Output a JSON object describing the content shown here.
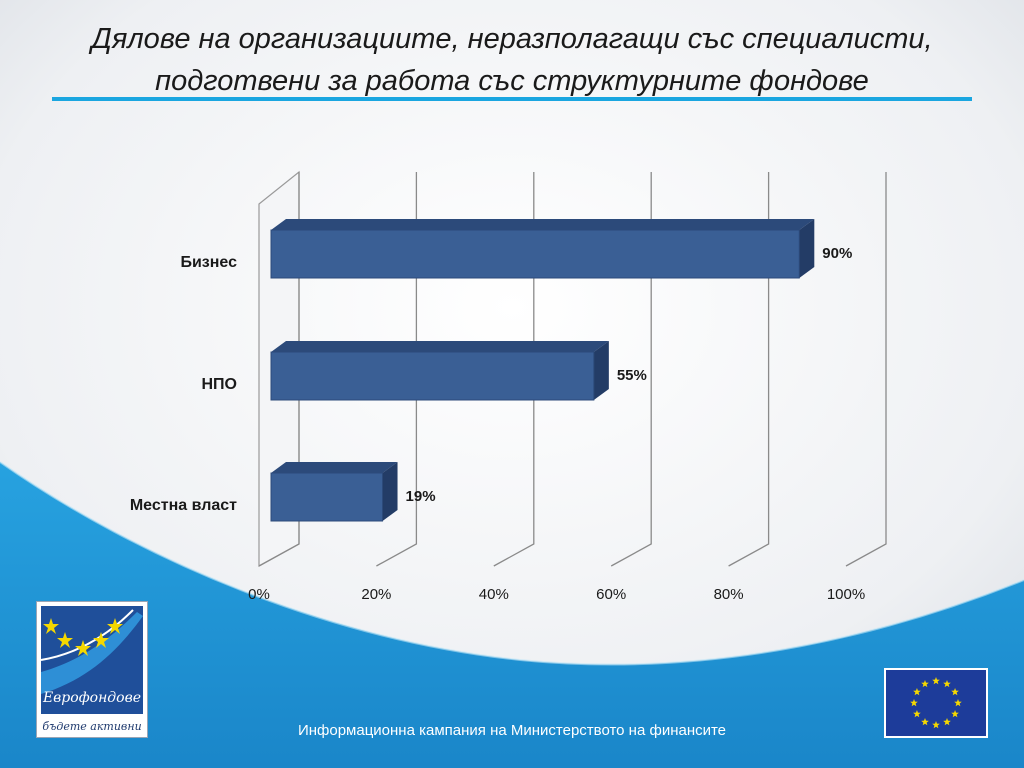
{
  "slide": {
    "title_lines": [
      "Дялове на организациите, неразполагащи със специалисти,",
      "подготвени за работа със структурните фондове"
    ],
    "footer": "Информационна кампания на Министерството на финансите",
    "logo": {
      "brand": "Еврофондове",
      "slogan": "бъдете активни",
      "icon": "eurofunds-logo"
    },
    "eu_flag": {
      "icon": "eu-flag-icon"
    },
    "colors": {
      "accent": "#1aa6e0",
      "bar": "#3a5f95",
      "background_band": "#1b8fd3"
    }
  },
  "chart_data": {
    "type": "bar",
    "orientation": "horizontal",
    "categories": [
      "Бизнес",
      "НПО",
      "Местна власт"
    ],
    "values": [
      90,
      55,
      19
    ],
    "value_labels": [
      "90%",
      "55%",
      "19%"
    ],
    "xlim": [
      0,
      100
    ],
    "x_ticks": [
      "0%",
      "20%",
      "40%",
      "60%",
      "80%",
      "100%"
    ],
    "grid": true,
    "style": "3d"
  }
}
